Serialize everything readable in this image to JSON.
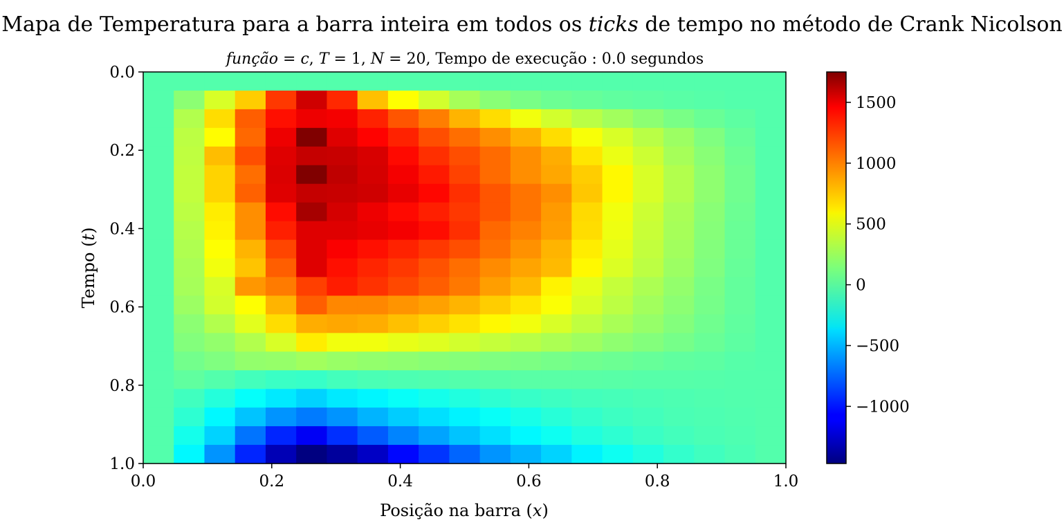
{
  "chart_data": {
    "type": "heatmap",
    "title_parts": [
      "Mapa de Temperatura para a barra inteira em todos os ",
      "ticks",
      " de tempo no método de Crank Nicolson"
    ],
    "subtitle_parts": [
      "função",
      " = ",
      "c",
      ",  ",
      "T",
      " = 1,  ",
      "N",
      " = 20,  ",
      "Tempo de execução :  0.0 segundos"
    ],
    "xlabel_parts": [
      "Posição na barra (",
      "x",
      ")"
    ],
    "ylabel_parts": [
      "Tempo (",
      "t",
      ")"
    ],
    "xlim": [
      0.0,
      1.0
    ],
    "ylim": [
      1.0,
      0.0
    ],
    "x_ticks": [
      "0.0",
      "0.2",
      "0.4",
      "0.6",
      "0.8",
      "1.0"
    ],
    "y_ticks": [
      "0.0",
      "0.2",
      "0.4",
      "0.6",
      "0.8",
      "1.0"
    ],
    "colormap": "jet",
    "vmin": -1470,
    "vmax": 1750,
    "colorbar_ticks": [
      "1500",
      "1000",
      "500",
      "0",
      "−500",
      "−1000"
    ],
    "colorbar_tick_values": [
      1500,
      1000,
      500,
      0,
      -500,
      -1000
    ],
    "grid_rows": 21,
    "grid_cols": 21,
    "values": [
      [
        0,
        0,
        0,
        0,
        0,
        0,
        0,
        0,
        0,
        0,
        0,
        0,
        0,
        0,
        0,
        0,
        0,
        0,
        0,
        0,
        0
      ],
      [
        0,
        180,
        420,
        700,
        1170,
        1500,
        1220,
        740,
        540,
        400,
        260,
        170,
        120,
        80,
        60,
        40,
        30,
        20,
        10,
        0,
        0
      ],
      [
        0,
        300,
        650,
        1050,
        1300,
        1400,
        1380,
        1240,
        1080,
        950,
        780,
        650,
        500,
        400,
        320,
        250,
        180,
        120,
        70,
        30,
        0
      ],
      [
        0,
        330,
        550,
        1020,
        1400,
        1750,
        1450,
        1340,
        1240,
        1100,
        1000,
        900,
        790,
        650,
        520,
        420,
        320,
        230,
        140,
        60,
        0
      ],
      [
        0,
        340,
        750,
        1100,
        1450,
        1530,
        1520,
        1470,
        1320,
        1200,
        1100,
        1010,
        900,
        800,
        620,
        480,
        380,
        260,
        170,
        80,
        0
      ],
      [
        0,
        350,
        680,
        1000,
        1460,
        1750,
        1550,
        1480,
        1380,
        1270,
        1140,
        1010,
        900,
        820,
        700,
        560,
        420,
        300,
        190,
        90,
        0
      ],
      [
        0,
        350,
        680,
        1040,
        1450,
        1530,
        1520,
        1500,
        1420,
        1330,
        1200,
        1080,
        980,
        900,
        720,
        560,
        420,
        300,
        190,
        90,
        0
      ],
      [
        0,
        330,
        600,
        900,
        1310,
        1630,
        1480,
        1400,
        1320,
        1250,
        1170,
        1080,
        980,
        860,
        660,
        500,
        380,
        270,
        170,
        80,
        0
      ],
      [
        0,
        310,
        580,
        900,
        1250,
        1450,
        1450,
        1420,
        1380,
        1310,
        1200,
        1020,
        940,
        850,
        650,
        490,
        370,
        260,
        160,
        70,
        0
      ],
      [
        0,
        290,
        540,
        780,
        1130,
        1450,
        1360,
        1300,
        1240,
        1170,
        1100,
        990,
        890,
        780,
        600,
        460,
        350,
        250,
        150,
        70,
        0
      ],
      [
        0,
        270,
        500,
        730,
        1050,
        1450,
        1300,
        1230,
        1170,
        1090,
        1000,
        910,
        830,
        760,
        560,
        430,
        330,
        230,
        140,
        60,
        0
      ],
      [
        0,
        260,
        420,
        870,
        960,
        1150,
        1260,
        1190,
        1120,
        1050,
        970,
        850,
        760,
        580,
        460,
        360,
        280,
        200,
        120,
        50,
        0
      ],
      [
        0,
        230,
        400,
        540,
        780,
        1050,
        920,
        920,
        880,
        840,
        780,
        700,
        620,
        530,
        420,
        330,
        250,
        180,
        110,
        50,
        0
      ],
      [
        0,
        180,
        300,
        450,
        650,
        800,
        820,
        800,
        740,
        690,
        630,
        560,
        500,
        420,
        340,
        270,
        210,
        150,
        90,
        40,
        0
      ],
      [
        0,
        150,
        200,
        300,
        420,
        600,
        500,
        500,
        470,
        440,
        400,
        360,
        320,
        280,
        240,
        190,
        150,
        110,
        70,
        30,
        0
      ],
      [
        0,
        100,
        140,
        200,
        210,
        250,
        220,
        200,
        190,
        170,
        160,
        140,
        130,
        110,
        90,
        80,
        60,
        40,
        30,
        10,
        0
      ],
      [
        0,
        40,
        0,
        -50,
        -80,
        -90,
        -50,
        -30,
        -20,
        -10,
        0,
        10,
        20,
        20,
        20,
        15,
        10,
        10,
        5,
        0,
        0
      ],
      [
        0,
        -60,
        -150,
        -250,
        -330,
        -400,
        -330,
        -290,
        -240,
        -200,
        -160,
        -120,
        -90,
        -70,
        -50,
        -40,
        -30,
        -20,
        -10,
        -5,
        0
      ],
      [
        0,
        -120,
        -280,
        -450,
        -600,
        -680,
        -600,
        -500,
        -420,
        -360,
        -300,
        -240,
        -190,
        -140,
        -100,
        -70,
        -50,
        -30,
        -20,
        -10,
        0
      ],
      [
        0,
        -200,
        -400,
        -700,
        -950,
        -1100,
        -920,
        -780,
        -650,
        -550,
        -450,
        -360,
        -280,
        -220,
        -160,
        -120,
        -80,
        -50,
        -30,
        -15,
        0
      ],
      [
        0,
        -280,
        -600,
        -950,
        -1300,
        -1470,
        -1380,
        -1250,
        -1050,
        -900,
        -750,
        -600,
        -500,
        -400,
        -300,
        -220,
        -160,
        -100,
        -60,
        -30,
        0
      ]
    ]
  }
}
